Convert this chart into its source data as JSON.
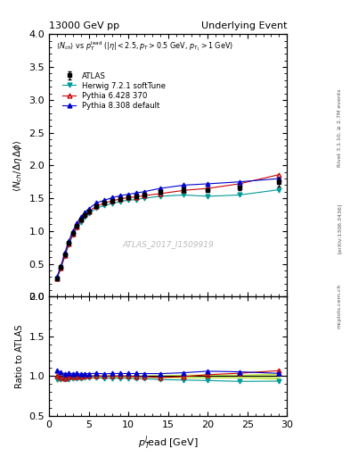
{
  "title_left": "13000 GeV pp",
  "title_right": "Underlying Event",
  "ylabel_main": "<N_{ch} / #Delta#eta delta>",
  "ylabel_ratio": "Ratio to ATLAS",
  "xlabel": "p_{T}^{lead} [GeV]",
  "watermark": "ATLAS_2017_I1509919",
  "atlas_data": {
    "x": [
      1.0,
      1.5,
      2.0,
      2.5,
      3.0,
      3.5,
      4.0,
      4.5,
      5.0,
      6.0,
      7.0,
      8.0,
      9.0,
      10.0,
      11.0,
      12.0,
      14.0,
      17.0,
      20.0,
      24.0,
      29.0
    ],
    "y": [
      0.28,
      0.45,
      0.65,
      0.82,
      0.97,
      1.08,
      1.18,
      1.24,
      1.3,
      1.38,
      1.43,
      1.46,
      1.49,
      1.51,
      1.53,
      1.55,
      1.6,
      1.63,
      1.62,
      1.66,
      1.74
    ],
    "yerr": [
      0.02,
      0.02,
      0.02,
      0.02,
      0.02,
      0.02,
      0.02,
      0.02,
      0.02,
      0.02,
      0.02,
      0.02,
      0.02,
      0.02,
      0.02,
      0.02,
      0.02,
      0.03,
      0.03,
      0.03,
      0.06
    ],
    "color": "#000000",
    "marker": "s",
    "label": "ATLAS"
  },
  "herwig_data": {
    "x": [
      1.0,
      1.5,
      2.0,
      2.5,
      3.0,
      3.5,
      4.0,
      4.5,
      5.0,
      6.0,
      7.0,
      8.0,
      9.0,
      10.0,
      11.0,
      12.0,
      14.0,
      17.0,
      20.0,
      24.0,
      29.0
    ],
    "y": [
      0.27,
      0.43,
      0.62,
      0.79,
      0.94,
      1.05,
      1.14,
      1.22,
      1.27,
      1.35,
      1.39,
      1.42,
      1.45,
      1.47,
      1.48,
      1.5,
      1.53,
      1.55,
      1.53,
      1.55,
      1.63
    ],
    "color": "#009999",
    "marker": "v",
    "label": "Herwig 7.2.1 softTune"
  },
  "pythia6_data": {
    "x": [
      1.0,
      1.5,
      2.0,
      2.5,
      3.0,
      3.5,
      4.0,
      4.5,
      5.0,
      6.0,
      7.0,
      8.0,
      9.0,
      10.0,
      11.0,
      12.0,
      14.0,
      17.0,
      20.0,
      24.0,
      29.0
    ],
    "y": [
      0.28,
      0.44,
      0.63,
      0.81,
      0.96,
      1.07,
      1.17,
      1.25,
      1.3,
      1.38,
      1.43,
      1.46,
      1.49,
      1.51,
      1.52,
      1.54,
      1.57,
      1.62,
      1.65,
      1.72,
      1.86
    ],
    "color": "#cc0000",
    "marker": "^",
    "label": "Pythia 6.428 370"
  },
  "pythia8_data": {
    "x": [
      1.0,
      1.5,
      2.0,
      2.5,
      3.0,
      3.5,
      4.0,
      4.5,
      5.0,
      6.0,
      7.0,
      8.0,
      9.0,
      10.0,
      11.0,
      12.0,
      14.0,
      17.0,
      20.0,
      24.0,
      29.0
    ],
    "y": [
      0.3,
      0.47,
      0.67,
      0.85,
      1.0,
      1.12,
      1.21,
      1.28,
      1.34,
      1.43,
      1.47,
      1.51,
      1.54,
      1.56,
      1.58,
      1.6,
      1.65,
      1.7,
      1.72,
      1.75,
      1.8
    ],
    "color": "#0000cc",
    "marker": "^",
    "label": "Pythia 8.308 default"
  },
  "ylim_main": [
    0.0,
    4.0
  ],
  "ylim_ratio": [
    0.5,
    2.0
  ],
  "xlim": [
    0,
    30
  ],
  "ratio_band_color": "#aadd00",
  "ratio_band_alpha": 0.5
}
